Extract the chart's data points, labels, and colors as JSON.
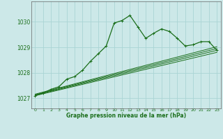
{
  "title": "Graphe pression niveau de la mer (hPa)",
  "bg_color": "#cce8e8",
  "grid_color": "#aad4d4",
  "line_color": "#1a6e1a",
  "axis_color": "#666666",
  "xlim": [
    -0.5,
    23.5
  ],
  "ylim": [
    1026.6,
    1030.8
  ],
  "yticks": [
    1027,
    1028,
    1029,
    1030
  ],
  "xticks": [
    0,
    1,
    2,
    3,
    4,
    5,
    6,
    7,
    8,
    9,
    10,
    11,
    12,
    13,
    14,
    15,
    16,
    17,
    18,
    19,
    20,
    21,
    22,
    23
  ],
  "main_x": [
    0,
    1,
    2,
    3,
    4,
    5,
    6,
    7,
    8,
    9,
    10,
    11,
    12,
    13,
    14,
    15,
    16,
    17,
    18,
    19,
    20,
    21,
    22,
    23
  ],
  "main_y": [
    1027.1,
    1027.2,
    1027.35,
    1027.45,
    1027.75,
    1027.85,
    1028.1,
    1028.45,
    1028.75,
    1029.05,
    1029.95,
    1030.05,
    1030.25,
    1029.8,
    1029.35,
    1029.55,
    1029.72,
    1029.62,
    1029.35,
    1029.05,
    1029.1,
    1029.22,
    1029.22,
    1028.88
  ],
  "flat_lines": [
    [
      1027.1,
      1028.8
    ],
    [
      1027.12,
      1028.88
    ],
    [
      1027.14,
      1028.95
    ],
    [
      1027.16,
      1029.02
    ]
  ]
}
